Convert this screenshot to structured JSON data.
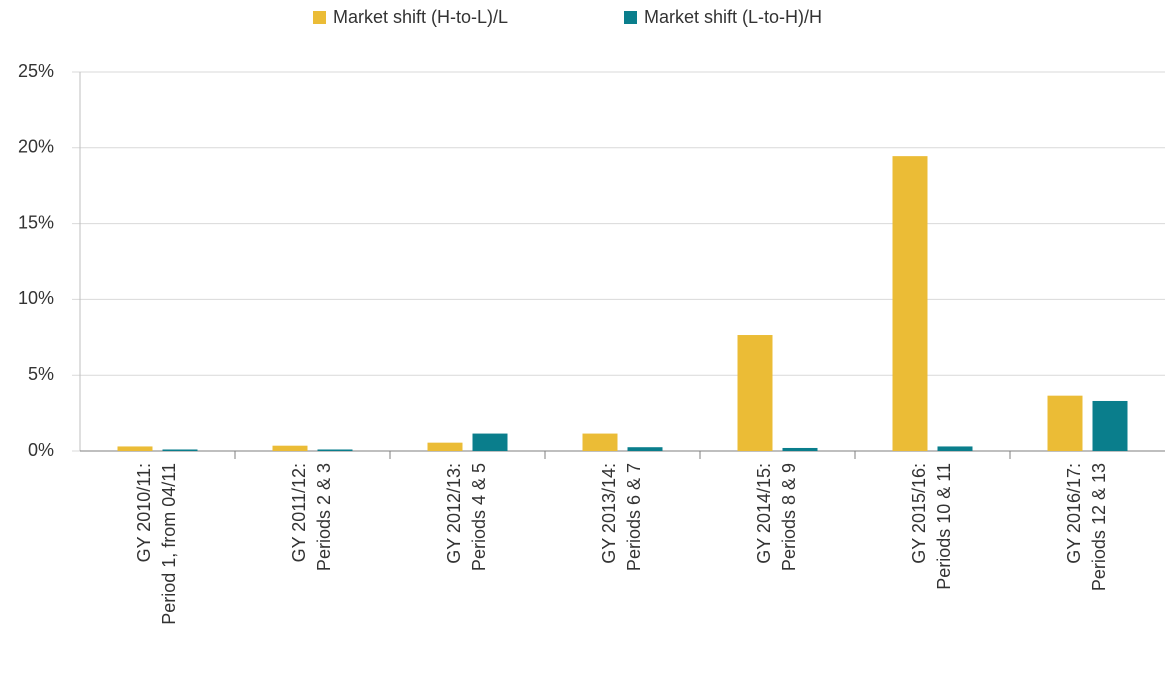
{
  "chart_data": {
    "type": "bar",
    "categories": [
      [
        "GY 2010/11:",
        "Period 1, from 04/11"
      ],
      [
        "GY 2011/12:",
        "Periods 2 & 3"
      ],
      [
        "GY 2012/13:",
        "Periods 4 & 5"
      ],
      [
        "GY 2013/14:",
        "Periods 6 & 7"
      ],
      [
        "GY 2014/15:",
        "Periods 8 & 9"
      ],
      [
        "GY 2015/16:",
        "Periods 10 & 11"
      ],
      [
        "GY 2016/17:",
        "Periods 12 & 13"
      ]
    ],
    "series": [
      {
        "name": "Market shift (H-to-L)/L",
        "color": "#EBBC36",
        "values": [
          0.3,
          0.35,
          0.55,
          1.15,
          7.65,
          19.45,
          3.65
        ]
      },
      {
        "name": "Market shift (L-to-H)/H",
        "color": "#0A7E8C",
        "values": [
          0.1,
          0.1,
          1.15,
          0.25,
          0.2,
          0.3,
          3.3
        ]
      }
    ],
    "ylim": [
      0,
      25
    ],
    "yticks": [
      {
        "value": 0,
        "label": "0%"
      },
      {
        "value": 5,
        "label": "5%"
      },
      {
        "value": 10,
        "label": "10%"
      },
      {
        "value": 15,
        "label": "15%"
      },
      {
        "value": 20,
        "label": "20%"
      },
      {
        "value": 25,
        "label": "25%"
      }
    ],
    "grid": true,
    "legend": "top"
  }
}
